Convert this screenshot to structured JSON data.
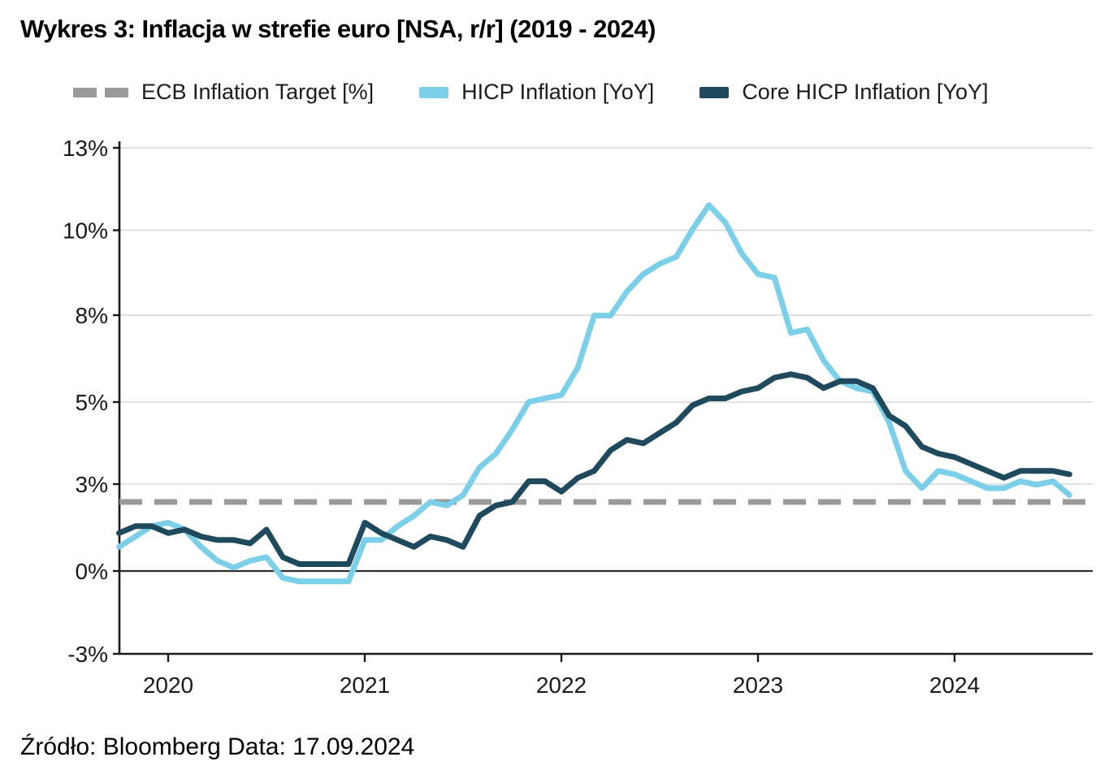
{
  "title": "Wykres 3: Inflacja w strefie euro [NSA, r/r] (2019 - 2024)",
  "source": "Źródło: Bloomberg Data: 17.09.2024",
  "colors": {
    "target": "#9A9A9A",
    "hicp": "#7BCFE9",
    "core": "#1F4A5E",
    "gridline": "#D6D6D6",
    "axis": "#1a1a1a",
    "zero_line": "#2e2e2e",
    "text": "#1a1a1a"
  },
  "legend": {
    "items": [
      {
        "label": "ECB Inflation Target [%]",
        "style": "dashed",
        "color": "#9A9A9A"
      },
      {
        "label": "HICP Inflation [YoY]",
        "style": "solid",
        "color": "#7BCFE9"
      },
      {
        "label": "Core HICP Inflation [YoY]",
        "style": "solid",
        "color": "#1F4A5E"
      }
    ]
  },
  "chart_data": {
    "type": "line",
    "title": "Wykres 3: Inflacja w strefie euro [NSA, r/r] (2019 - 2024)",
    "frequency": "monthly",
    "x_start": "2019-10",
    "x_end": "2024-08",
    "x_months": [
      "2019-10",
      "2019-11",
      "2019-12",
      "2020-01",
      "2020-02",
      "2020-03",
      "2020-04",
      "2020-05",
      "2020-06",
      "2020-07",
      "2020-08",
      "2020-09",
      "2020-10",
      "2020-11",
      "2020-12",
      "2021-01",
      "2021-02",
      "2021-03",
      "2021-04",
      "2021-05",
      "2021-06",
      "2021-07",
      "2021-08",
      "2021-09",
      "2021-10",
      "2021-11",
      "2021-12",
      "2022-01",
      "2022-02",
      "2022-03",
      "2022-04",
      "2022-05",
      "2022-06",
      "2022-07",
      "2022-08",
      "2022-09",
      "2022-10",
      "2022-11",
      "2022-12",
      "2023-01",
      "2023-02",
      "2023-03",
      "2023-04",
      "2023-05",
      "2023-06",
      "2023-07",
      "2023-08",
      "2023-09",
      "2023-10",
      "2023-11",
      "2023-12",
      "2024-01",
      "2024-02",
      "2024-03",
      "2024-04",
      "2024-05",
      "2024-06",
      "2024-07",
      "2024-08"
    ],
    "series": [
      {
        "name": "HICP Inflation [YoY]",
        "color": "#7BCFE9",
        "style": "solid",
        "values": [
          0.7,
          1.0,
          1.3,
          1.4,
          1.2,
          0.7,
          0.3,
          0.1,
          0.3,
          0.4,
          -0.2,
          -0.3,
          -0.3,
          -0.3,
          -0.3,
          0.9,
          0.9,
          1.3,
          1.6,
          2.0,
          1.9,
          2.2,
          3.0,
          3.4,
          4.1,
          4.9,
          5.0,
          5.1,
          5.9,
          7.4,
          7.4,
          8.1,
          8.6,
          8.9,
          9.1,
          9.9,
          10.6,
          10.1,
          9.2,
          8.6,
          8.5,
          6.9,
          7.0,
          6.1,
          5.5,
          5.3,
          5.2,
          4.3,
          2.9,
          2.4,
          2.9,
          2.8,
          2.6,
          2.4,
          2.4,
          2.6,
          2.5,
          2.6,
          2.2
        ]
      },
      {
        "name": "Core HICP Inflation [YoY]",
        "color": "#1F4A5E",
        "style": "solid",
        "values": [
          1.1,
          1.3,
          1.3,
          1.1,
          1.2,
          1.0,
          0.9,
          0.9,
          0.8,
          1.2,
          0.4,
          0.2,
          0.2,
          0.2,
          0.2,
          1.4,
          1.1,
          0.9,
          0.7,
          1.0,
          0.9,
          0.7,
          1.6,
          1.9,
          2.0,
          2.6,
          2.6,
          2.3,
          2.7,
          2.9,
          3.5,
          3.8,
          3.7,
          4.0,
          4.3,
          4.8,
          5.0,
          5.0,
          5.2,
          5.3,
          5.6,
          5.7,
          5.6,
          5.3,
          5.5,
          5.5,
          5.3,
          4.5,
          4.2,
          3.6,
          3.4,
          3.3,
          3.1,
          2.9,
          2.7,
          2.9,
          2.9,
          2.9,
          2.8
        ]
      },
      {
        "name": "ECB Inflation Target [%]",
        "color": "#9A9A9A",
        "style": "dashed",
        "constant_value": 2.0
      }
    ],
    "ylim": [
      -3,
      13
    ],
    "y_tick_labels": [
      "13%",
      "10%",
      "8%",
      "5%",
      "3%",
      "0%",
      "-3%"
    ],
    "x_tick_labels": [
      "2020",
      "2021",
      "2022",
      "2023",
      "2024"
    ],
    "grid": "horizontal",
    "legend_position": "top"
  }
}
